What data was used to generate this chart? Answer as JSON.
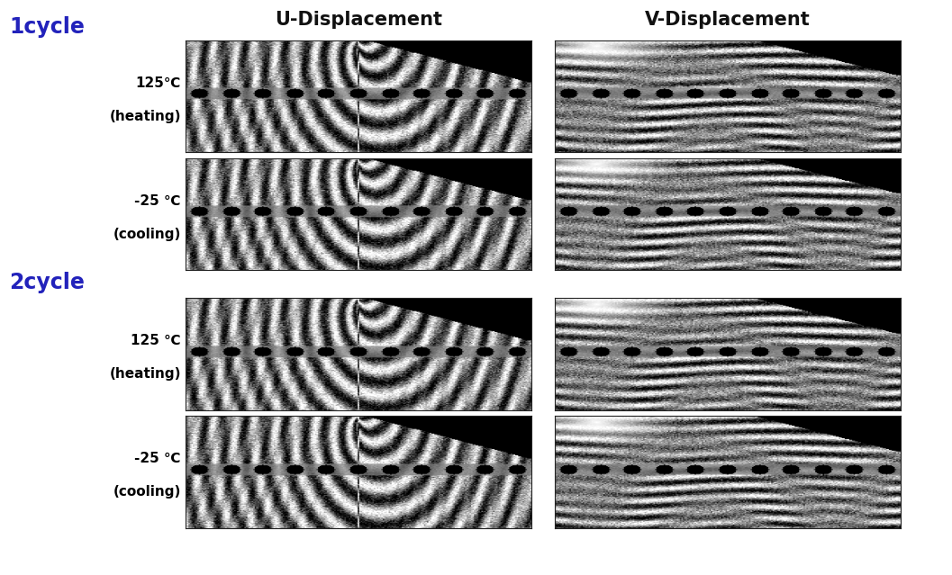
{
  "col_headers": [
    "U-Displacement",
    "V-Displacement"
  ],
  "row_labels_cycle": [
    "1cycle",
    "2cycle"
  ],
  "row_labels_temp": [
    [
      "125℃",
      "(heating)"
    ],
    [
      "-25 ℃",
      "(cooling)"
    ],
    [
      "125 ℃",
      "(heating)"
    ],
    [
      "-25 ℃",
      "(cooling)"
    ]
  ],
  "cycle_label_color": "#2222BB",
  "temp_label_color": "#000000",
  "background_color": "#ffffff",
  "header_fontsize": 15,
  "cycle_fontsize": 17,
  "temp_fontsize": 11,
  "fig_width": 10.57,
  "fig_height": 6.39
}
